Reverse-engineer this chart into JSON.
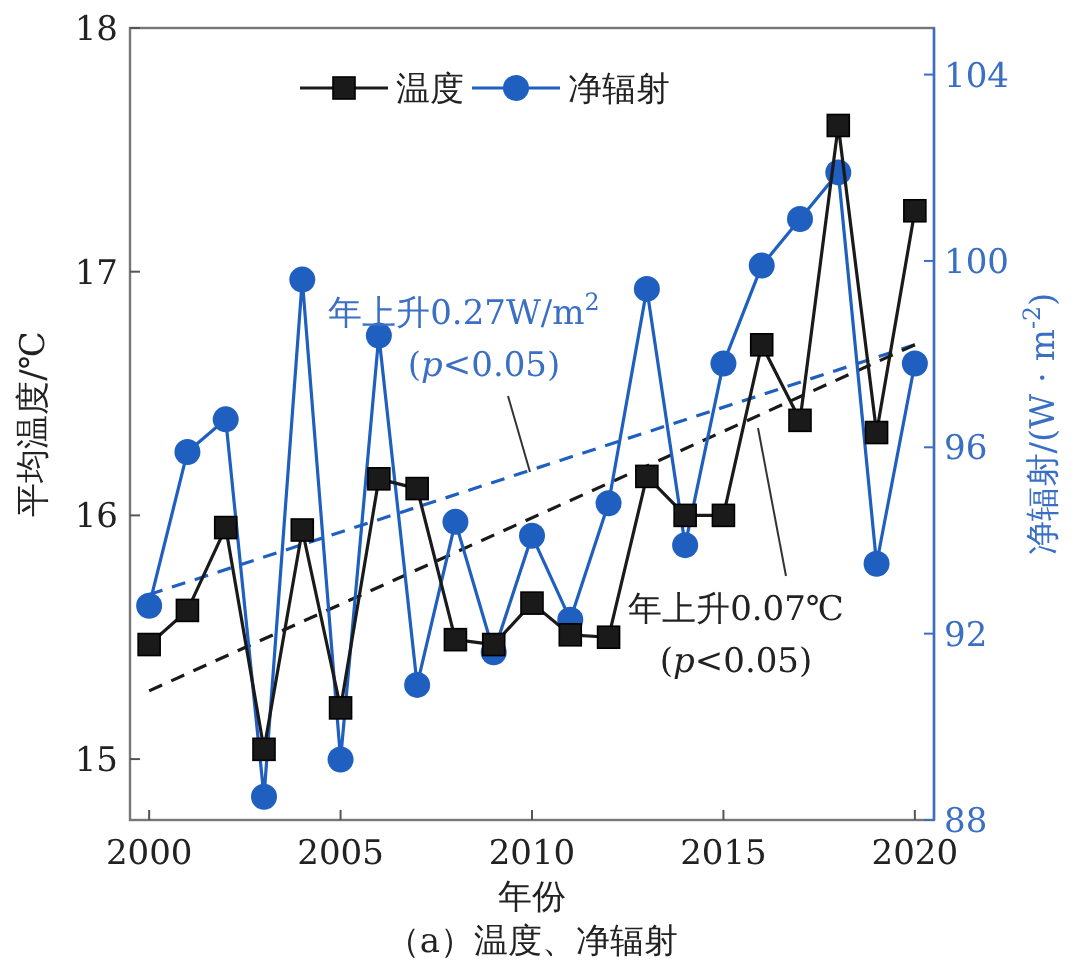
{
  "chart_data": {
    "type": "line",
    "xlabel": "年份",
    "ylabel": "平均温度/℃",
    "y2label": "净辐射/(W · m$^{-2}$)",
    "annotations": [
      "（a）温度、净辐射",
      "年上升0.27W/m$^{2}$",
      "(*p*<0.05)",
      "年上升0.07℃",
      "(*p*<0.05)"
    ],
    "xlim": [
      1999.5,
      2020.5
    ],
    "xticks": [
      2000,
      2005,
      2010,
      2015,
      2020
    ],
    "ylim": [
      14.75,
      18
    ],
    "yticks": [
      15,
      16,
      17,
      18
    ],
    "y2lim": [
      88,
      105
    ],
    "y2ticks": [
      88,
      92,
      96,
      100,
      104
    ],
    "legend": "top",
    "series": [
      {
        "name": "温度",
        "color": "#1a1a1a",
        "marker": "square",
        "x": [
          2000,
          2001,
          2002,
          2003,
          2004,
          2005,
          2006,
          2007,
          2008,
          2009,
          2010,
          2011,
          2012,
          2013,
          2014,
          2015,
          2016,
          2017,
          2018,
          2019,
          2020
        ],
        "values": [
          15.47,
          15.61,
          15.95,
          15.04,
          15.94,
          15.21,
          16.15,
          16.11,
          15.49,
          15.47,
          15.64,
          15.51,
          15.5,
          16.16,
          16.0,
          16.0,
          16.7,
          16.39,
          17.6,
          16.34,
          17.25
        ]
      },
      {
        "name": "净辐射",
        "color": "#1f5fbf",
        "marker": "circle",
        "axis": "y2",
        "x": [
          2000,
          2001,
          2002,
          2003,
          2004,
          2005,
          2006,
          2007,
          2008,
          2009,
          2010,
          2011,
          2012,
          2013,
          2014,
          2015,
          2016,
          2017,
          2018,
          2019,
          2020
        ],
        "values": [
          92.6,
          95.9,
          96.6,
          88.5,
          99.6,
          89.3,
          98.4,
          90.9,
          94.4,
          91.6,
          94.1,
          92.3,
          94.8,
          99.4,
          93.9,
          97.8,
          99.9,
          100.9,
          101.9,
          93.5,
          97.8
        ]
      },
      {
        "color": "#1a1a1a",
        "marker": "none",
        "line_style": "dashed",
        "x": [
          2000,
          2020
        ],
        "values": [
          15.28,
          16.7
        ]
      },
      {
        "color": "#1f5fbf",
        "marker": "none",
        "line_style": "dashed",
        "axis": "y2",
        "x": [
          2000,
          2020
        ],
        "values": [
          92.84,
          98.2
        ]
      }
    ]
  }
}
